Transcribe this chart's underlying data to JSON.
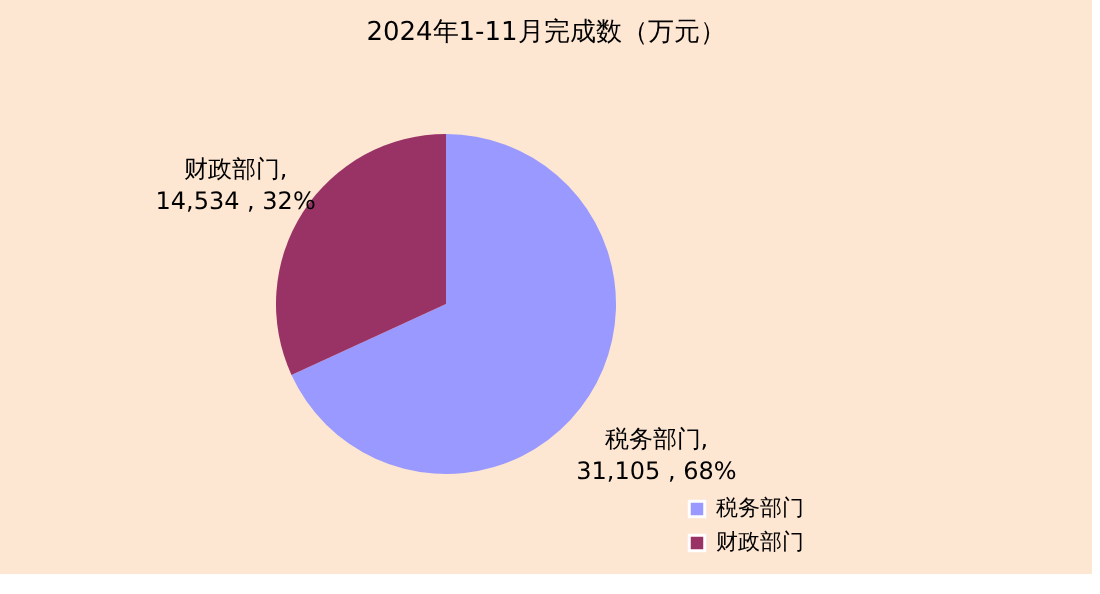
{
  "chart_data": {
    "type": "pie",
    "title": "2024年1-11月完成数（万元）",
    "categories": [
      "税务部门",
      "财政部门"
    ],
    "values": [
      31105,
      14534
    ],
    "colors": [
      "#9999ff",
      "#993366"
    ],
    "value_labels": [
      "税务部门,\n31,105 , 68%",
      "财政部门,\n14,534 , 32%"
    ],
    "legend": "bottom right"
  }
}
